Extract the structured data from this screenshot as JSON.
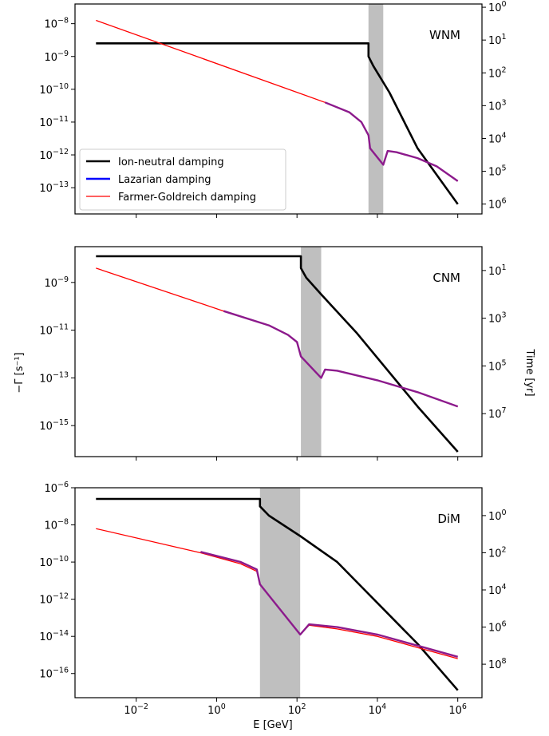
{
  "chart_data": {
    "type": "line",
    "shared_xlabel": "E [GeV]",
    "shared_ylabel_left": "−Γ [s⁻¹]",
    "shared_ylabel_right": "Time [yr]",
    "x_scale": "log",
    "xlim": [
      0.0003,
      4000000
    ],
    "xticks": [
      {
        "value": 0.01,
        "mant": "10",
        "exp": "−2"
      },
      {
        "value": 1,
        "mant": "10",
        "exp": "0"
      },
      {
        "value": 100,
        "mant": "10",
        "exp": "2"
      },
      {
        "value": 10000,
        "mant": "10",
        "exp": "4"
      },
      {
        "value": 1000000,
        "mant": "10",
        "exp": "6"
      }
    ],
    "legend": {
      "placement": "lower-left of top panel",
      "entries": [
        {
          "label": "Ion-neutral damping",
          "color": "#000000"
        },
        {
          "label": "Lazarian damping",
          "color": "#0000ff"
        },
        {
          "label": "Farmer-Goldreich damping",
          "color": "#ff0000"
        }
      ]
    },
    "colors": {
      "ion": "#000000",
      "lazarian": "#0000ff",
      "fg": "#ff0000",
      "overlap": "#8c1a8c",
      "band": "#bfbfbf"
    },
    "panels": [
      {
        "name": "WNM",
        "y_scale": "log",
        "ylim_log10": [
          -13.8,
          -7.4
        ],
        "yticks": [
          {
            "value": -8,
            "mant": "10",
            "exp": "−8"
          },
          {
            "value": -9,
            "mant": "10",
            "exp": "−9"
          },
          {
            "value": -10,
            "mant": "10",
            "exp": "−10"
          },
          {
            "value": -11,
            "mant": "10",
            "exp": "−11"
          },
          {
            "value": -12,
            "mant": "10",
            "exp": "−12"
          },
          {
            "value": -13,
            "mant": "10",
            "exp": "−13"
          }
        ],
        "time_ticks_yr": [
          {
            "value": 0,
            "mant": "10",
            "exp": "0"
          },
          {
            "value": 1,
            "mant": "10",
            "exp": "1"
          },
          {
            "value": 2,
            "mant": "10",
            "exp": "2"
          },
          {
            "value": 3,
            "mant": "10",
            "exp": "3"
          },
          {
            "value": 4,
            "mant": "10",
            "exp": "4"
          },
          {
            "value": 5,
            "mant": "10",
            "exp": "5"
          },
          {
            "value": 6,
            "mant": "10",
            "exp": "6"
          }
        ],
        "band_E": [
          6000,
          14000
        ],
        "ion_neutral": {
          "E": [
            0.001,
            6000,
            6000,
            8000,
            20000,
            100000,
            1000000
          ],
          "log10_rate": [
            -8.6,
            -8.6,
            -9.0,
            -9.3,
            -10.1,
            -11.8,
            -13.5
          ]
        },
        "farmer_goldreich": {
          "E": [
            0.001,
            500,
            2000,
            4000,
            6000,
            6600,
            14000,
            18000,
            30000,
            100000,
            300000,
            1000000
          ],
          "log10_rate": [
            -7.9,
            -10.4,
            -10.7,
            -11.0,
            -11.4,
            -11.8,
            -12.3,
            -11.88,
            -11.92,
            -12.1,
            -12.35,
            -12.8
          ]
        },
        "lazarian": {
          "E": [
            500,
            2000,
            4000,
            6000,
            6600,
            14000,
            18000,
            30000,
            100000,
            300000,
            1000000
          ],
          "log10_rate": [
            -10.4,
            -10.7,
            -11.0,
            -11.4,
            -11.8,
            -12.3,
            -11.88,
            -11.92,
            -12.1,
            -12.35,
            -12.8
          ]
        }
      },
      {
        "name": "CNM",
        "y_scale": "log",
        "ylim_log10": [
          -16.3,
          -7.5
        ],
        "yticks": [
          {
            "value": -9,
            "mant": "10",
            "exp": "−9"
          },
          {
            "value": -11,
            "mant": "10",
            "exp": "−11"
          },
          {
            "value": -13,
            "mant": "10",
            "exp": "−13"
          },
          {
            "value": -15,
            "mant": "10",
            "exp": "−15"
          }
        ],
        "time_ticks_yr": [
          {
            "value": 1,
            "mant": "10",
            "exp": "1"
          },
          {
            "value": 3,
            "mant": "10",
            "exp": "3"
          },
          {
            "value": 5,
            "mant": "10",
            "exp": "5"
          },
          {
            "value": 7,
            "mant": "10",
            "exp": "7"
          }
        ],
        "band_E": [
          125,
          400
        ],
        "ion_neutral": {
          "E": [
            0.001,
            125,
            125,
            170,
            400,
            3000,
            100000,
            1000000
          ],
          "log10_rate": [
            -7.9,
            -7.9,
            -8.4,
            -8.8,
            -9.5,
            -11.1,
            -14.2,
            -16.1
          ]
        },
        "farmer_goldreich": {
          "E": [
            0.001,
            1.5,
            20,
            60,
            100,
            125,
            400,
            500,
            1000,
            10000,
            100000,
            1000000
          ],
          "log10_rate": [
            -8.4,
            -10.2,
            -10.8,
            -11.2,
            -11.5,
            -12.1,
            -13.0,
            -12.65,
            -12.7,
            -13.1,
            -13.6,
            -14.2
          ]
        },
        "lazarian": {
          "E": [
            1.5,
            20,
            60,
            100,
            125,
            400,
            500,
            1000,
            10000,
            100000,
            1000000
          ],
          "log10_rate": [
            -10.2,
            -10.8,
            -11.2,
            -11.5,
            -12.1,
            -13.0,
            -12.65,
            -12.7,
            -13.1,
            -13.6,
            -14.2
          ]
        }
      },
      {
        "name": "DiM",
        "y_scale": "log",
        "ylim_log10": [
          -17.3,
          -6.0
        ],
        "yticks": [
          {
            "value": -6,
            "mant": "10",
            "exp": "−6"
          },
          {
            "value": -8,
            "mant": "10",
            "exp": "−8"
          },
          {
            "value": -10,
            "mant": "10",
            "exp": "−10"
          },
          {
            "value": -12,
            "mant": "10",
            "exp": "−12"
          },
          {
            "value": -14,
            "mant": "10",
            "exp": "−14"
          },
          {
            "value": -16,
            "mant": "10",
            "exp": "−16"
          }
        ],
        "time_ticks_yr": [
          {
            "value": 0,
            "mant": "10",
            "exp": "0"
          },
          {
            "value": 2,
            "mant": "10",
            "exp": "2"
          },
          {
            "value": 4,
            "mant": "10",
            "exp": "4"
          },
          {
            "value": 6,
            "mant": "10",
            "exp": "6"
          },
          {
            "value": 8,
            "mant": "10",
            "exp": "8"
          }
        ],
        "band_E": [
          12,
          120
        ],
        "ion_neutral": {
          "E": [
            0.001,
            12,
            12,
            20,
            120,
            1000,
            100000,
            1000000
          ],
          "log10_rate": [
            -6.6,
            -6.6,
            -7.0,
            -7.5,
            -8.6,
            -10.0,
            -14.4,
            -16.9
          ]
        },
        "farmer_goldreich": {
          "E": [
            0.001,
            0.4,
            4,
            10,
            12,
            120,
            200,
            1000,
            10000,
            100000,
            1000000
          ],
          "log10_rate": [
            -8.2,
            -9.5,
            -10.1,
            -10.5,
            -11.2,
            -13.9,
            -13.4,
            -13.6,
            -14.0,
            -14.6,
            -15.2
          ]
        },
        "lazarian": {
          "E": [
            0.4,
            4,
            10,
            12,
            120,
            200,
            1000,
            10000,
            100000,
            1000000
          ],
          "log10_rate": [
            -9.45,
            -10.0,
            -10.4,
            -11.2,
            -13.9,
            -13.35,
            -13.5,
            -13.9,
            -14.5,
            -15.1
          ]
        }
      }
    ]
  }
}
